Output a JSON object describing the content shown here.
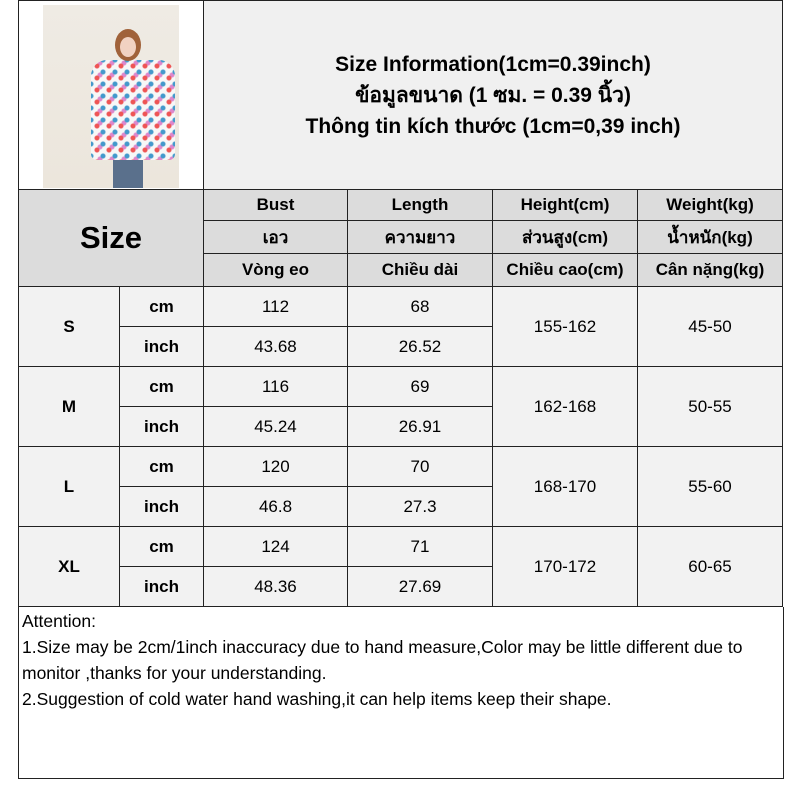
{
  "title": {
    "line1": "Size Information(1cm=0.39inch)",
    "line2": "ข้อมูลขนาด (1 ซม. = 0.39 นิ้ว)",
    "line3": "Thông tin kích thước (1cm=0,39 inch)"
  },
  "header": {
    "size": "Size",
    "columns": [
      {
        "en": "Bust",
        "th": "เอว",
        "vi": "Vòng eo"
      },
      {
        "en": "Length",
        "th": "ความยาว",
        "vi": "Chiều dài"
      },
      {
        "en": "Height(cm)",
        "th": "ส่วนสูง(cm)",
        "vi": "Chiều cao(cm)"
      },
      {
        "en": "Weight(kg)",
        "th": "น้ำหนัก(kg)",
        "vi": "Cân nặng(kg)"
      }
    ]
  },
  "rows": [
    {
      "size": "S",
      "cm_label": "cm",
      "inch_label": "inch",
      "bust_cm": "112",
      "length_cm": "68",
      "bust_inch": "43.68",
      "length_inch": "26.52",
      "height": "155-162",
      "weight": "45-50"
    },
    {
      "size": "M",
      "cm_label": "cm",
      "inch_label": "inch",
      "bust_cm": "116",
      "length_cm": "69",
      "bust_inch": "45.24",
      "length_inch": "26.91",
      "height": "162-168",
      "weight": "50-55"
    },
    {
      "size": "L",
      "cm_label": "cm",
      "inch_label": "inch",
      "bust_cm": "120",
      "length_cm": "70",
      "bust_inch": "46.8",
      "length_inch": "27.3",
      "height": "168-170",
      "weight": "55-60"
    },
    {
      "size": "XL",
      "cm_label": "cm",
      "inch_label": "inch",
      "bust_cm": "124",
      "length_cm": "71",
      "bust_inch": "48.36",
      "length_inch": "27.69",
      "height": "170-172",
      "weight": "60-65"
    }
  ],
  "attention": {
    "heading": "Attention:",
    "note1": "1.Size may be 2cm/1inch inaccuracy due to hand measure,Color may be little different due to monitor ,thanks for your understanding.",
    "note2": "2.Suggestion of cold water hand washing,it can help items keep their shape."
  }
}
